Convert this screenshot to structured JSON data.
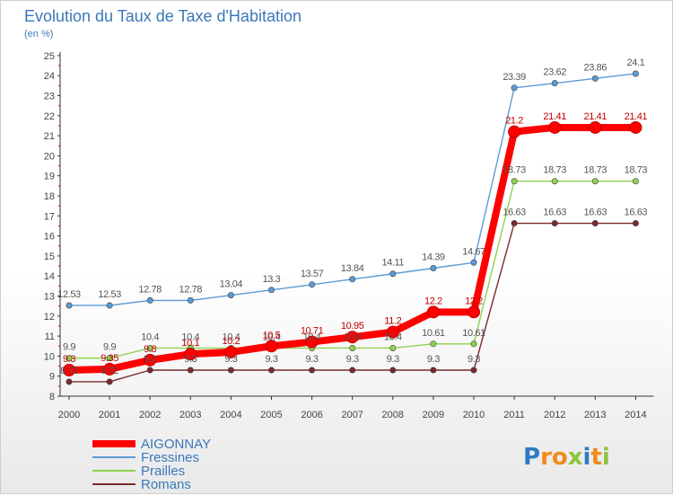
{
  "chart_data": {
    "type": "line",
    "title": "Evolution du Taux de Taxe d'Habitation",
    "subtitle": "(en %)",
    "x": [
      "2000",
      "2001",
      "2002",
      "2003",
      "2004",
      "2005",
      "2006",
      "2007",
      "2008",
      "2009",
      "2010",
      "2011",
      "2012",
      "2013",
      "2014"
    ],
    "ylim": [
      8,
      25
    ],
    "yticks": [
      "8",
      "9",
      "10",
      "11",
      "12",
      "13",
      "14",
      "15",
      "16",
      "17",
      "18",
      "19",
      "20",
      "21",
      "22",
      "23",
      "24",
      "25"
    ],
    "grid": false,
    "legend_position": "bottom-left",
    "series": [
      {
        "name": "AIGONNAY",
        "color": "#ff0000",
        "values": [
          9.3,
          9.35,
          9.8,
          10.1,
          10.2,
          10.5,
          10.71,
          10.95,
          11.2,
          12.2,
          12.2,
          21.2,
          21.41,
          21.41,
          21.41
        ],
        "labels": [
          "9.3",
          "9.35",
          "9.8",
          "10.1",
          "10.2",
          "10.5",
          "10.71",
          "10.95",
          "11.2",
          "12.2",
          "12.2",
          "21.2",
          "21.41",
          "21.41",
          "21.41"
        ]
      },
      {
        "name": "Fressines",
        "color": "#5b9bd5",
        "values": [
          12.53,
          12.53,
          12.78,
          12.78,
          13.04,
          13.3,
          13.57,
          13.84,
          14.11,
          14.39,
          14.67,
          23.39,
          23.62,
          23.86,
          24.1
        ],
        "labels": [
          "12.53",
          "12.53",
          "12.78",
          "12.78",
          "13.04",
          "13.3",
          "13.57",
          "13.84",
          "14.11",
          "14.39",
          "14.67",
          "23.39",
          "23.62",
          "23.86",
          "24.1"
        ]
      },
      {
        "name": "Prailles",
        "color": "#8fd14f",
        "values": [
          9.9,
          9.9,
          10.4,
          10.4,
          10.4,
          10.4,
          10.4,
          10.4,
          10.4,
          10.61,
          10.61,
          18.73,
          18.73,
          18.73,
          18.73
        ],
        "labels": [
          "9.9",
          "9.9",
          "10.4",
          "10.4",
          "10.4",
          "10.4",
          "10.4",
          "10.4",
          "10.4",
          "10.61",
          "10.61",
          "18.73",
          "18.73",
          "18.73",
          "18.73"
        ]
      },
      {
        "name": "Romans",
        "color": "#7b2a2a",
        "values": [
          8.72,
          8.72,
          9.3,
          9.3,
          9.3,
          9.3,
          9.3,
          9.3,
          9.3,
          9.3,
          9.3,
          16.63,
          16.63,
          16.63,
          16.63
        ],
        "labels": [
          "8.72",
          "8.72",
          "9.3",
          "9.3",
          "9.3",
          "9.3",
          "9.3",
          "9.3",
          "9.3",
          "9.3",
          "9.3",
          "16.63",
          "16.63",
          "16.63",
          "16.63"
        ]
      }
    ]
  },
  "logo": {
    "letters": [
      "P",
      "r",
      "o",
      "x",
      "i",
      "t",
      "i"
    ],
    "colors": [
      "#2e7bc4",
      "#f08a1c",
      "#f08a1c",
      "#8cc63f",
      "#2e7bc4",
      "#f08a1c",
      "#8cc63f"
    ]
  }
}
